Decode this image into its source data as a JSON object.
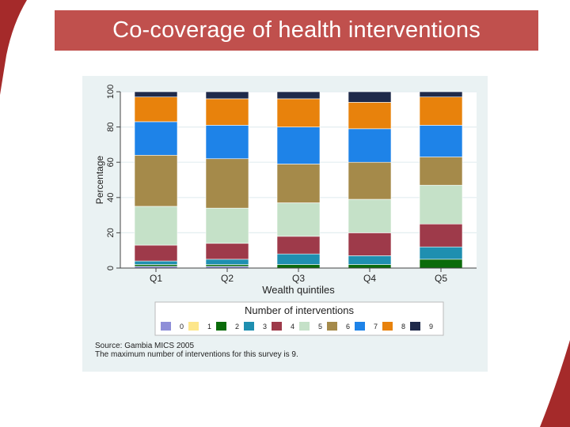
{
  "slide": {
    "title": "Co-coverage of health interventions",
    "colors": {
      "banner": "#c0504d",
      "panel": "#eaf2f3",
      "corner": "#a52a2a"
    }
  },
  "notes": {
    "source": "Source: Gambia MICS 2005",
    "max": "The maximum number of interventions for this survey is 9."
  },
  "chart_data": {
    "type": "bar",
    "stacked": true,
    "title": "",
    "xlabel": "Wealth quintiles",
    "ylabel": "Percentage",
    "ylim": [
      0,
      100
    ],
    "yticks": [
      0,
      20,
      40,
      60,
      80,
      100
    ],
    "grid": true,
    "legend_title": "Number of interventions",
    "legend_position": "bottom",
    "categories": [
      "Q1",
      "Q2",
      "Q3",
      "Q4",
      "Q5"
    ],
    "series": [
      {
        "name": "0",
        "color": "#8e8ed8",
        "values": [
          1,
          1,
          0,
          0,
          0
        ]
      },
      {
        "name": "1",
        "color": "#fde68a",
        "values": [
          0,
          0,
          0,
          0,
          0
        ]
      },
      {
        "name": "2",
        "color": "#0a6b0a",
        "values": [
          1,
          1,
          2,
          2,
          5
        ]
      },
      {
        "name": "3",
        "color": "#1f8fb0",
        "values": [
          2,
          3,
          6,
          5,
          7
        ]
      },
      {
        "name": "4",
        "color": "#9e3a4a",
        "values": [
          9,
          9,
          10,
          13,
          13
        ]
      },
      {
        "name": "5",
        "color": "#c5e1c8",
        "values": [
          22,
          20,
          19,
          19,
          22
        ]
      },
      {
        "name": "6",
        "color": "#a58a4a",
        "values": [
          29,
          28,
          22,
          21,
          16
        ]
      },
      {
        "name": "7",
        "color": "#1e83e8",
        "values": [
          19,
          19,
          21,
          19,
          18
        ]
      },
      {
        "name": "8",
        "color": "#e8820c",
        "values": [
          14,
          15,
          16,
          15,
          16
        ]
      },
      {
        "name": "9",
        "color": "#1f2a4a",
        "values": [
          3,
          4,
          4,
          6,
          3
        ]
      }
    ]
  }
}
